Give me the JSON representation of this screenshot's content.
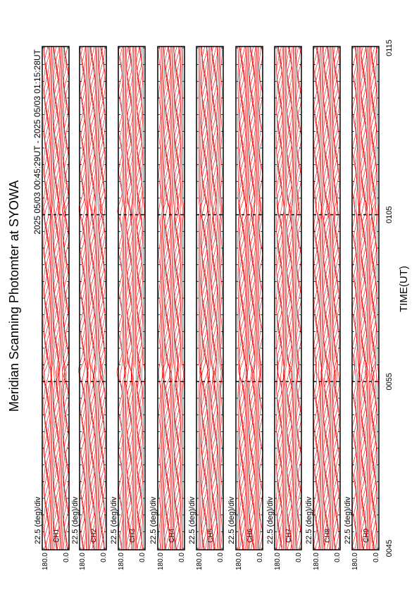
{
  "title": "Meridian Scanning Photomter at SYOWA",
  "subtitle": "2025 05/03 00:45:29UT - 2025 05/03 01:15:28UT",
  "x_axis": {
    "label": "TIME(UT)",
    "ticks": [
      "0045",
      "0055",
      "0105",
      "0115"
    ]
  },
  "panels": [
    {
      "scale": "22.5 (deg)/div",
      "channel": "CH1",
      "top": "180.0",
      "bottom": "0.0"
    },
    {
      "scale": "22.5 (deg)/div",
      "channel": "CH2",
      "top": "180.0",
      "bottom": "0.0"
    },
    {
      "scale": "22.5 (deg)/div",
      "channel": "CH3",
      "top": "180.0",
      "bottom": "0.0"
    },
    {
      "scale": "22.5 (deg)/div",
      "channel": "CH4",
      "top": "180.0",
      "bottom": "0.0"
    },
    {
      "scale": "22.5 (deg)/div",
      "channel": "CH5",
      "top": "180.0",
      "bottom": "0.0"
    },
    {
      "scale": "22.5 (deg)/div",
      "channel": "CH6",
      "top": "180.0",
      "bottom": "0.0"
    },
    {
      "scale": "22.5 (deg)/div",
      "channel": "CH7",
      "top": "180.0",
      "bottom": "0.0"
    },
    {
      "scale": "22.5 (deg)/div",
      "channel": "CH8",
      "top": "180.0",
      "bottom": "0.0"
    },
    {
      "scale": "22.5 (deg)/div",
      "channel": "CH9",
      "top": "180.0",
      "bottom": "0.0"
    }
  ]
}
